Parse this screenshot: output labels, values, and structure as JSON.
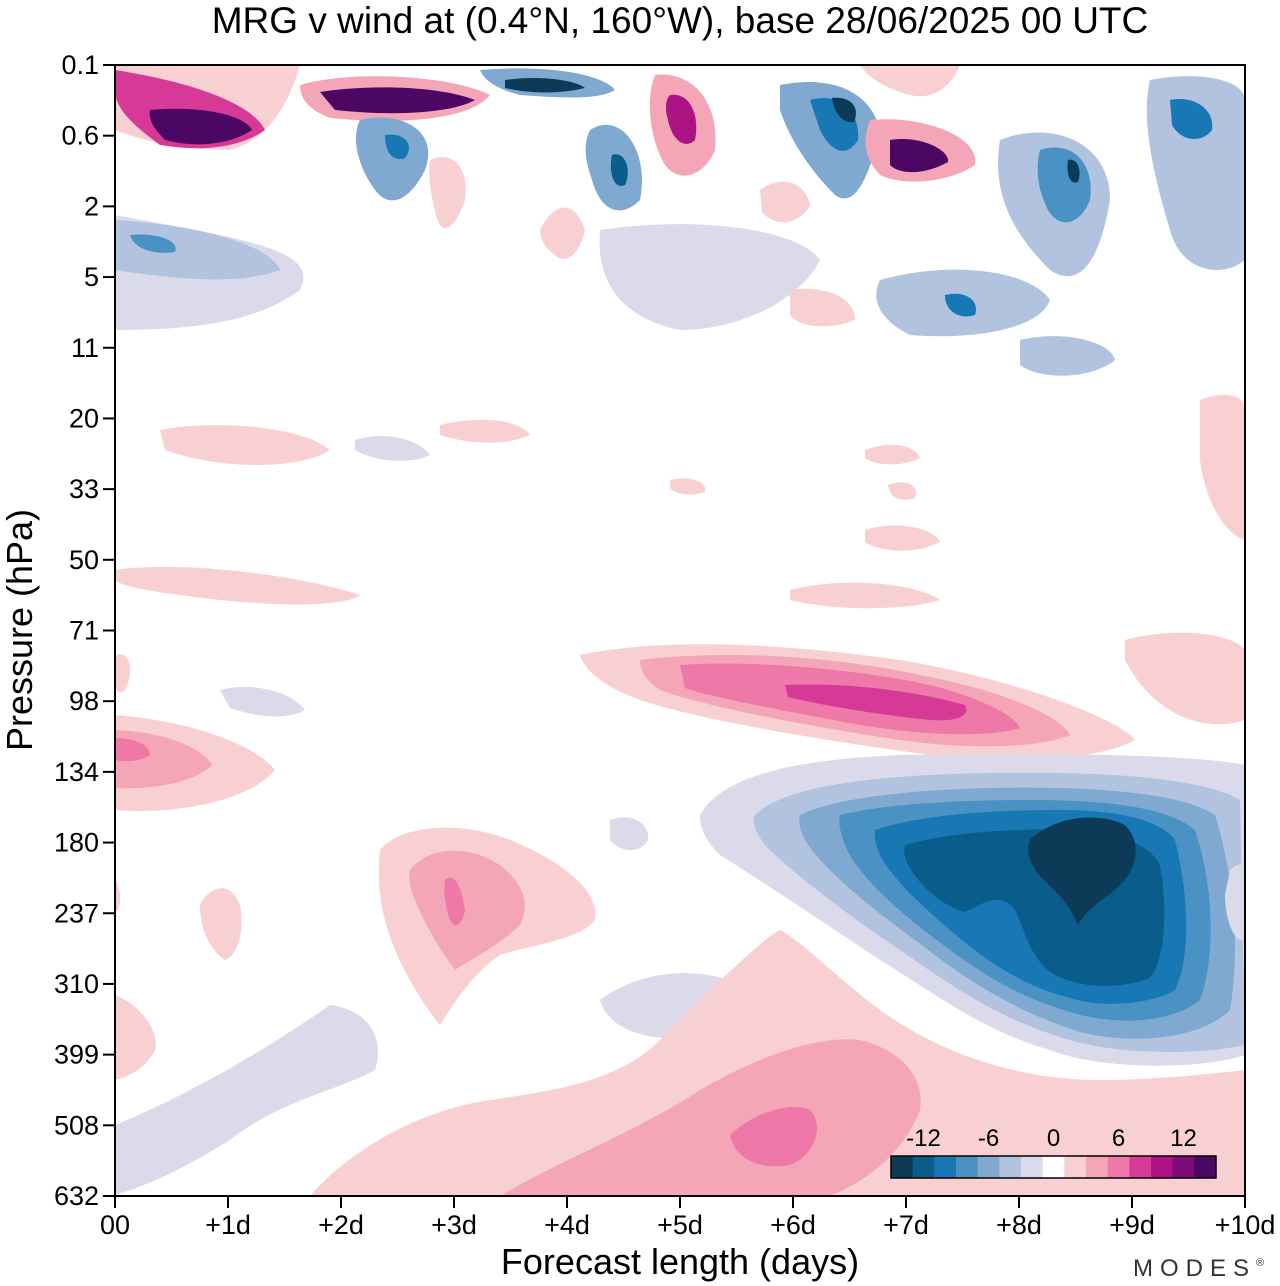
{
  "chart_data": {
    "type": "heatmap",
    "title": "MRG v wind at (0.4°N, 160°W),  base 28/06/2025  00 UTC",
    "xlabel": "Forecast length (days)",
    "ylabel": "Pressure (hPa)",
    "x_ticks": [
      "00",
      "+1d",
      "+2d",
      "+3d",
      "+4d",
      "+5d",
      "+6d",
      "+7d",
      "+8d",
      "+9d",
      "+10d"
    ],
    "xlim_days": [
      0,
      10
    ],
    "y_ticks": [
      "0.1",
      "0.6",
      "2",
      "5",
      "11",
      "20",
      "33",
      "50",
      "71",
      "98",
      "134",
      "180",
      "237",
      "310",
      "399",
      "508",
      "632"
    ],
    "y_scale": "log pressure, top to bottom",
    "colorbar": {
      "placement": "bottom-right inside plot",
      "tick_labels": [
        "-12",
        "-6",
        "0",
        "6",
        "12"
      ],
      "levels": [
        -14,
        -12,
        -10,
        -8,
        -6,
        -4,
        -2,
        2,
        4,
        6,
        8,
        10,
        12,
        14
      ],
      "colors": [
        "#0c3a57",
        "#0a5d8a",
        "#1778b5",
        "#4a92c4",
        "#7fa9d0",
        "#b2c3df",
        "#dadaeb",
        "#ffffff",
        "#f8d0d2",
        "#f4a6b6",
        "#ee78a8",
        "#d73a96",
        "#ae1384",
        "#7d0b79",
        "#4c0664"
      ]
    },
    "features": [
      {
        "level_index": 4,
        "x_day": [
          6.0,
          9.8
        ],
        "p_hpa": [
          134,
          400
        ],
        "note": "broad negative region"
      },
      {
        "level_index": 0,
        "x_day": [
          8.2,
          8.9
        ],
        "p_hpa": [
          180,
          260
        ],
        "note": "minimum"
      },
      {
        "level_index": 11,
        "x_day": [
          6.0,
          8.5
        ],
        "p_hpa": [
          88,
          110
        ],
        "note": "positive band"
      },
      {
        "level_index": 10,
        "x_day": [
          3.0,
          3.0
        ],
        "p_hpa": [
          220,
          260
        ],
        "note": "positive core"
      },
      {
        "level_index": 10,
        "x_day": [
          5.6,
          6.4
        ],
        "p_hpa": [
          510,
          600
        ],
        "note": "positive core"
      },
      {
        "level_index": 14,
        "x_day": [
          0.3,
          1.2
        ],
        "p_hpa": [
          0.4,
          0.6
        ],
        "note": "upper-level maximum"
      },
      {
        "level_index": 14,
        "x_day": [
          2.0,
          3.2
        ],
        "p_hpa": [
          0.2,
          0.3
        ],
        "note": "upper-level maximum"
      },
      {
        "level_index": 0,
        "x_day": [
          3.5,
          4.2
        ],
        "p_hpa": [
          0.12,
          0.15
        ],
        "note": "upper-level minimum"
      }
    ]
  },
  "brand": "MODES",
  "brand_mark": "®"
}
